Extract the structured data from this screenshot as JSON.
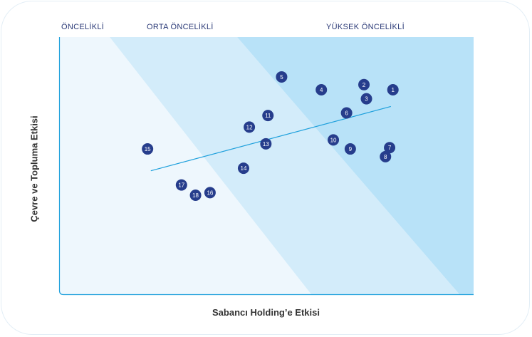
{
  "chart_data": {
    "type": "scatter",
    "title": "",
    "xlabel": "Sabancı Holding’e Etkisi",
    "ylabel": "Çevre ve Topluma Etkisi",
    "zones": [
      {
        "name": "ÖNCELİKLİ",
        "color": "#eef7fd"
      },
      {
        "name": "ORTA ÖNCELİKLİ",
        "color": "#d3ecfa"
      },
      {
        "name": "YÜKSEK ÖNCELİKLİ",
        "color": "#b8e2f8"
      }
    ],
    "point_color": "#263d8c",
    "trend_color": "#1ea0dc",
    "trendline": {
      "start": [
        0.22,
        0.48
      ],
      "end": [
        0.8,
        0.73
      ]
    },
    "points": [
      {
        "label": "1",
        "x": 0.805,
        "y": 0.795
      },
      {
        "label": "2",
        "x": 0.735,
        "y": 0.815
      },
      {
        "label": "3",
        "x": 0.741,
        "y": 0.76
      },
      {
        "label": "4",
        "x": 0.632,
        "y": 0.795
      },
      {
        "label": "5",
        "x": 0.536,
        "y": 0.845
      },
      {
        "label": "6",
        "x": 0.693,
        "y": 0.705
      },
      {
        "label": "7",
        "x": 0.797,
        "y": 0.57
      },
      {
        "label": "8",
        "x": 0.787,
        "y": 0.535
      },
      {
        "label": "9",
        "x": 0.702,
        "y": 0.565
      },
      {
        "label": "10",
        "x": 0.661,
        "y": 0.6
      },
      {
        "label": "11",
        "x": 0.503,
        "y": 0.695
      },
      {
        "label": "12",
        "x": 0.458,
        "y": 0.65
      },
      {
        "label": "13",
        "x": 0.498,
        "y": 0.585
      },
      {
        "label": "14",
        "x": 0.444,
        "y": 0.49
      },
      {
        "label": "15",
        "x": 0.212,
        "y": 0.565
      },
      {
        "label": "16",
        "x": 0.363,
        "y": 0.395
      },
      {
        "label": "17",
        "x": 0.294,
        "y": 0.425
      },
      {
        "label": "18",
        "x": 0.328,
        "y": 0.385
      }
    ]
  }
}
